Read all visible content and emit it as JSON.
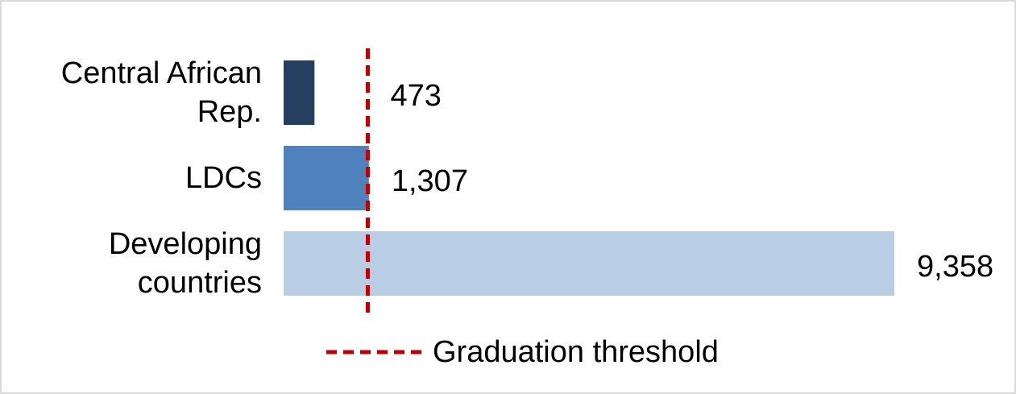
{
  "chart_data": {
    "type": "bar",
    "orientation": "horizontal",
    "categories": [
      "Central African Rep.",
      "LDCs",
      "Developing countries"
    ],
    "values": [
      473,
      1307,
      9358
    ],
    "value_labels": [
      "473",
      "1,307",
      "9,358"
    ],
    "colors": [
      "#243f60",
      "#4f81bd",
      "#b9cde5"
    ],
    "xlim": [
      0,
      9358
    ],
    "threshold": {
      "name": "Graduation threshold",
      "value": 1290,
      "color": "#c00000"
    },
    "legend": "bottom"
  }
}
